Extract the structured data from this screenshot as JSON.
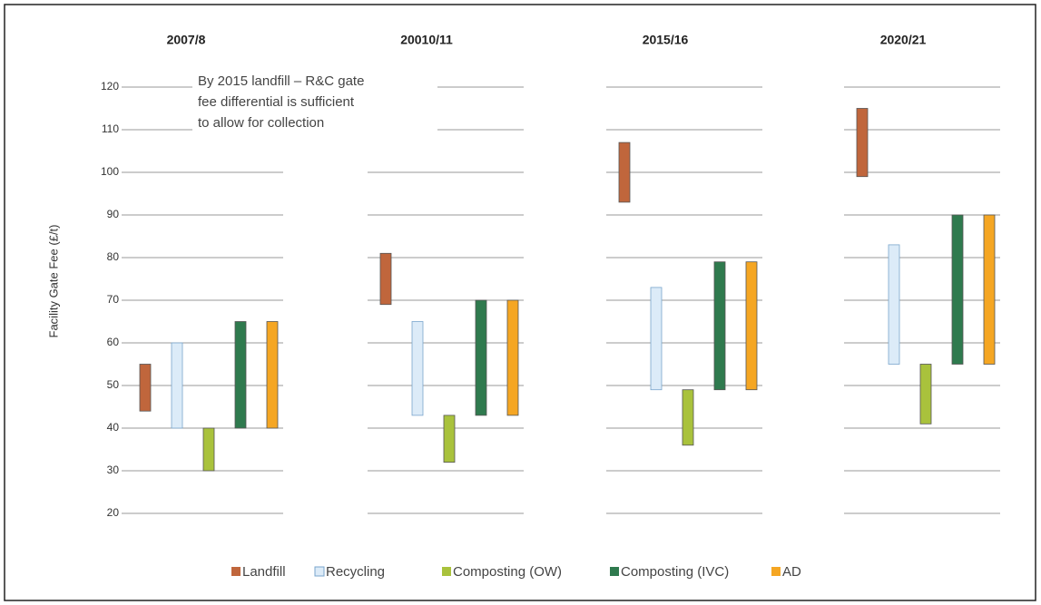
{
  "chart_data": {
    "type": "range-bar",
    "y_label": "Facility Gate Fee (£/t)",
    "annotation": [
      "By 2015 landfill – R&C gate",
      "fee differential is sufficient",
      "to allow for collection"
    ],
    "categories": [
      "2007/8",
      "20010/11",
      "2015/16",
      "2020/21"
    ],
    "series": [
      {
        "name": "Landfill",
        "color": "#c0663c",
        "low": [
          44,
          69,
          93,
          99
        ],
        "high": [
          55,
          81,
          107,
          115
        ]
      },
      {
        "name": "Recycling",
        "color": "#dcebf8",
        "low": [
          40,
          43,
          49,
          55
        ],
        "high": [
          60,
          65,
          73,
          83
        ]
      },
      {
        "name": "Composting (OW)",
        "color": "#a9c23c",
        "low": [
          30,
          32,
          36,
          41
        ],
        "high": [
          40,
          43,
          49,
          55
        ]
      },
      {
        "name": "Composting (IVC)",
        "color": "#2f7a4e",
        "low": [
          40,
          43,
          49,
          55
        ],
        "high": [
          65,
          70,
          79,
          90
        ]
      },
      {
        "name": "AD",
        "color": "#f5a623",
        "low": [
          40,
          43,
          49,
          55
        ],
        "high": [
          65,
          70,
          79,
          90
        ]
      }
    ],
    "ylim": [
      20,
      120
    ],
    "yticks": [
      20,
      30,
      40,
      50,
      60,
      70,
      80,
      90,
      100,
      110,
      120
    ],
    "grid": true
  }
}
